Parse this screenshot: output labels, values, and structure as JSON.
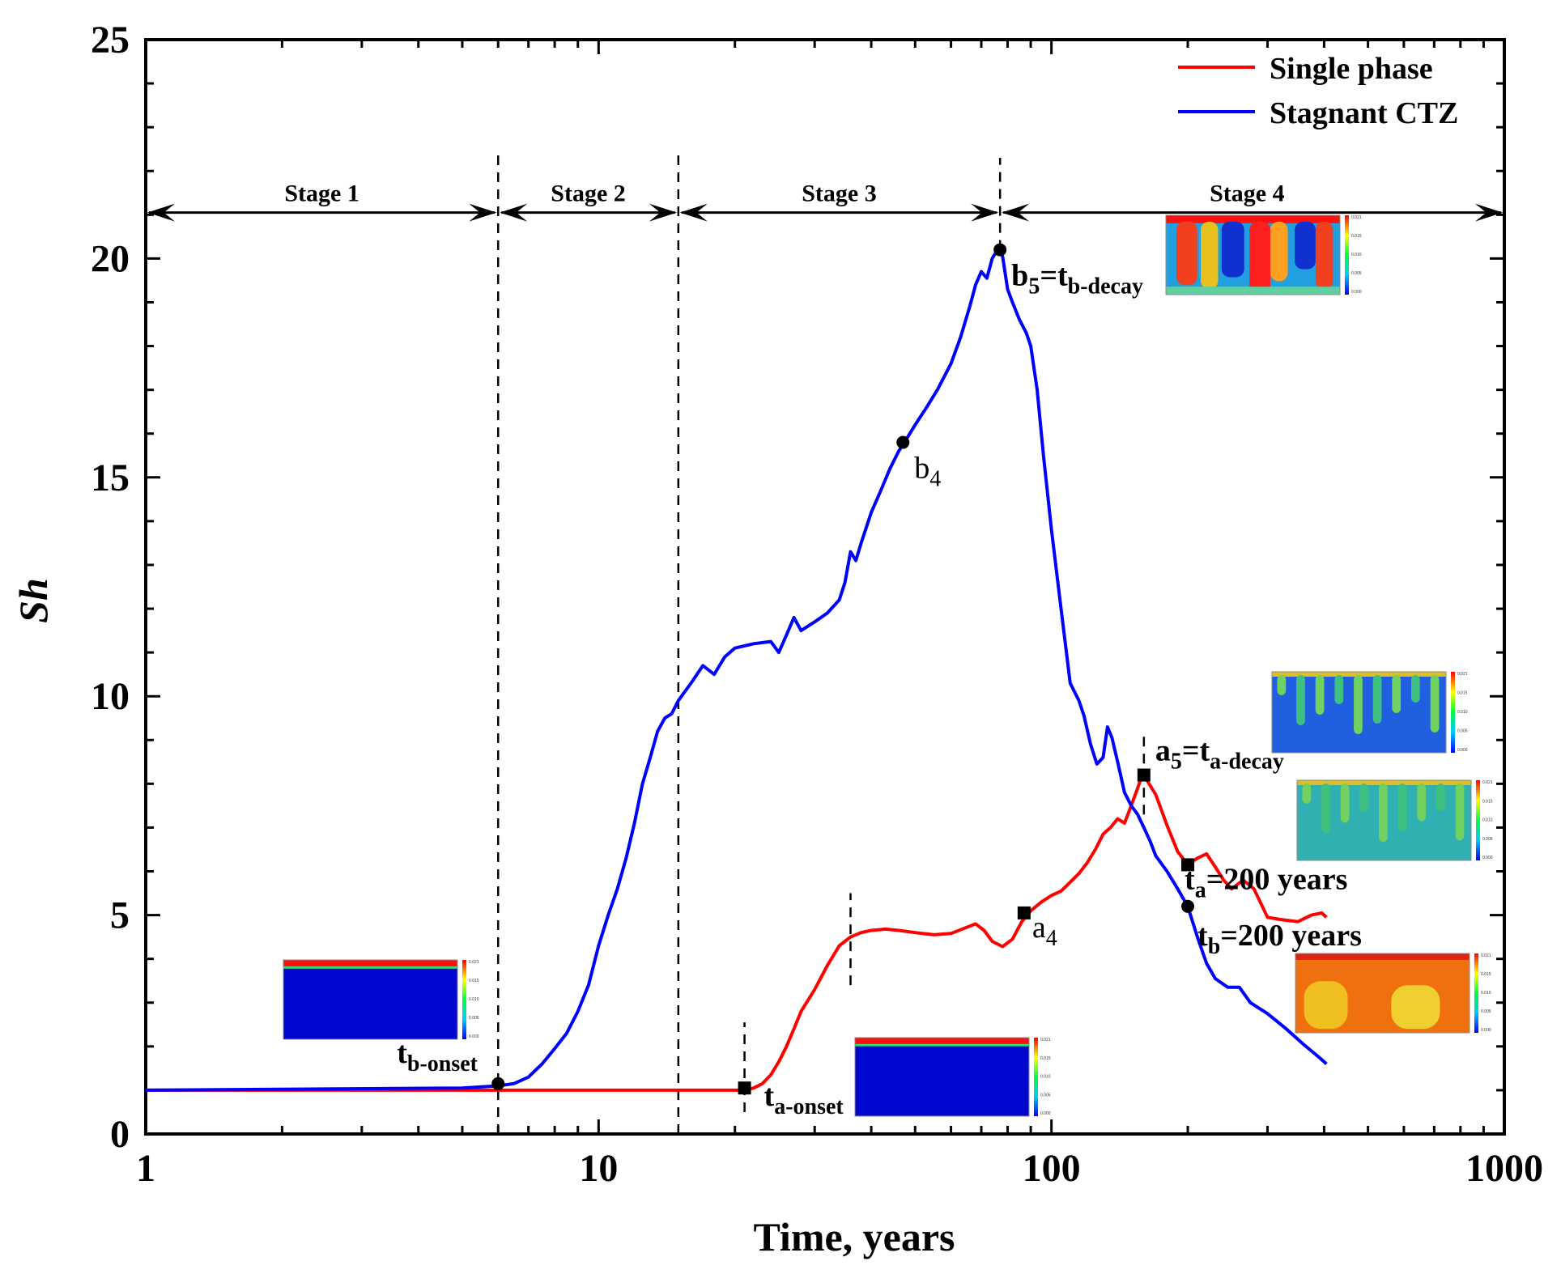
{
  "chart_data": {
    "type": "line",
    "xlabel": "Time, years",
    "ylabel": "Sh",
    "xscale": "log",
    "xlim": [
      1,
      1000
    ],
    "ylim": [
      0,
      25
    ],
    "x_ticks": [
      "1",
      "10",
      "100",
      "1000"
    ],
    "y_ticks": [
      "0",
      "5",
      "10",
      "15",
      "20",
      "25"
    ],
    "legend": {
      "position": "top-right",
      "entries": [
        {
          "label": "Single phase",
          "color": "#ff0000"
        },
        {
          "label": "Stagnant CTZ",
          "color": "#0000ff"
        }
      ]
    },
    "series": [
      {
        "name": "Single phase",
        "color": "#ff0000",
        "points": [
          [
            1,
            1.0
          ],
          [
            5,
            1.0
          ],
          [
            10,
            1.0
          ],
          [
            15,
            1.0
          ],
          [
            20,
            1.0
          ],
          [
            21,
            1.0
          ],
          [
            22,
            1.05
          ],
          [
            23,
            1.15
          ],
          [
            24,
            1.35
          ],
          [
            25,
            1.65
          ],
          [
            26,
            2.0
          ],
          [
            27,
            2.4
          ],
          [
            28,
            2.8
          ],
          [
            30,
            3.3
          ],
          [
            32,
            3.85
          ],
          [
            34,
            4.3
          ],
          [
            36,
            4.5
          ],
          [
            38,
            4.6
          ],
          [
            40,
            4.65
          ],
          [
            43,
            4.68
          ],
          [
            46,
            4.65
          ],
          [
            50,
            4.6
          ],
          [
            55,
            4.55
          ],
          [
            60,
            4.58
          ],
          [
            65,
            4.72
          ],
          [
            68,
            4.8
          ],
          [
            71,
            4.65
          ],
          [
            74,
            4.4
          ],
          [
            78,
            4.28
          ],
          [
            82,
            4.45
          ],
          [
            86,
            4.85
          ],
          [
            90,
            5.1
          ],
          [
            95,
            5.3
          ],
          [
            100,
            5.45
          ],
          [
            105,
            5.55
          ],
          [
            110,
            5.75
          ],
          [
            115,
            5.95
          ],
          [
            120,
            6.2
          ],
          [
            125,
            6.5
          ],
          [
            130,
            6.85
          ],
          [
            135,
            7.0
          ],
          [
            140,
            7.2
          ],
          [
            145,
            7.1
          ],
          [
            150,
            7.5
          ],
          [
            155,
            7.9
          ],
          [
            158,
            8.15
          ],
          [
            162,
            8.1
          ],
          [
            170,
            7.75
          ],
          [
            180,
            7.05
          ],
          [
            190,
            6.45
          ],
          [
            200,
            6.15
          ],
          [
            210,
            6.3
          ],
          [
            220,
            6.4
          ],
          [
            230,
            6.1
          ],
          [
            240,
            5.8
          ],
          [
            250,
            5.6
          ],
          [
            265,
            5.8
          ],
          [
            280,
            5.6
          ],
          [
            300,
            4.95
          ],
          [
            320,
            4.9
          ],
          [
            350,
            4.85
          ],
          [
            375,
            5.0
          ],
          [
            395,
            5.05
          ],
          [
            405,
            4.95
          ]
        ]
      },
      {
        "name": "Stagnant CTZ",
        "color": "#0000ff",
        "points": [
          [
            1,
            1.0
          ],
          [
            5,
            1.05
          ],
          [
            6,
            1.1
          ],
          [
            6.5,
            1.15
          ],
          [
            7,
            1.3
          ],
          [
            7.5,
            1.6
          ],
          [
            8,
            1.95
          ],
          [
            8.5,
            2.3
          ],
          [
            9,
            2.8
          ],
          [
            9.5,
            3.4
          ],
          [
            10,
            4.3
          ],
          [
            10.5,
            5.0
          ],
          [
            11,
            5.6
          ],
          [
            11.5,
            6.3
          ],
          [
            12,
            7.1
          ],
          [
            12.5,
            8.0
          ],
          [
            13,
            8.6
          ],
          [
            13.5,
            9.2
          ],
          [
            14,
            9.5
          ],
          [
            14.5,
            9.6
          ],
          [
            15,
            9.9
          ],
          [
            16,
            10.3
          ],
          [
            17,
            10.7
          ],
          [
            18,
            10.5
          ],
          [
            19,
            10.9
          ],
          [
            20,
            11.1
          ],
          [
            22,
            11.2
          ],
          [
            24,
            11.25
          ],
          [
            25,
            11.0
          ],
          [
            26,
            11.4
          ],
          [
            27,
            11.8
          ],
          [
            28,
            11.5
          ],
          [
            30,
            11.7
          ],
          [
            32,
            11.9
          ],
          [
            34,
            12.2
          ],
          [
            35,
            12.6
          ],
          [
            36,
            13.3
          ],
          [
            37,
            13.1
          ],
          [
            38,
            13.5
          ],
          [
            40,
            14.2
          ],
          [
            42,
            14.7
          ],
          [
            44,
            15.2
          ],
          [
            46,
            15.6
          ],
          [
            48,
            15.9
          ],
          [
            50,
            16.2
          ],
          [
            53,
            16.6
          ],
          [
            56,
            17.0
          ],
          [
            60,
            17.6
          ],
          [
            63,
            18.2
          ],
          [
            66,
            18.9
          ],
          [
            68,
            19.4
          ],
          [
            70,
            19.7
          ],
          [
            72,
            19.55
          ],
          [
            74,
            20.0
          ],
          [
            76,
            20.2
          ],
          [
            78,
            20.05
          ],
          [
            80,
            19.3
          ],
          [
            82,
            19.0
          ],
          [
            85,
            18.6
          ],
          [
            88,
            18.3
          ],
          [
            90,
            18.0
          ],
          [
            93,
            17.0
          ],
          [
            96,
            15.5
          ],
          [
            100,
            13.8
          ],
          [
            105,
            12.0
          ],
          [
            110,
            10.3
          ],
          [
            115,
            9.9
          ],
          [
            118,
            9.55
          ],
          [
            122,
            8.9
          ],
          [
            126,
            8.45
          ],
          [
            130,
            8.6
          ],
          [
            133,
            9.3
          ],
          [
            136,
            9.05
          ],
          [
            140,
            8.5
          ],
          [
            145,
            7.8
          ],
          [
            150,
            7.5
          ],
          [
            155,
            7.3
          ],
          [
            160,
            7.0
          ],
          [
            165,
            6.7
          ],
          [
            170,
            6.35
          ],
          [
            180,
            6.0
          ],
          [
            190,
            5.6
          ],
          [
            200,
            5.2
          ],
          [
            210,
            4.5
          ],
          [
            220,
            3.9
          ],
          [
            230,
            3.55
          ],
          [
            245,
            3.35
          ],
          [
            260,
            3.35
          ],
          [
            275,
            3.0
          ],
          [
            300,
            2.75
          ],
          [
            330,
            2.4
          ],
          [
            360,
            2.05
          ],
          [
            390,
            1.75
          ],
          [
            405,
            1.6
          ]
        ]
      }
    ],
    "markers": [
      {
        "series": "Stagnant CTZ",
        "shape": "circle",
        "x": 6,
        "y": 1.15,
        "label_main": "t",
        "label_sub": "b-onset"
      },
      {
        "series": "Stagnant CTZ",
        "shape": "circle",
        "x": 47,
        "y": 15.8,
        "label_main": "b",
        "label_sub": "4"
      },
      {
        "series": "Stagnant CTZ",
        "shape": "circle",
        "x": 77,
        "y": 20.2,
        "label_main": "b",
        "label_sub": "5",
        "label_rest": "=t",
        "label_sub2": "b-decay"
      },
      {
        "series": "Stagnant CTZ",
        "shape": "circle",
        "x": 200,
        "y": 5.2,
        "label_main": "t",
        "label_sub": "b",
        "label_rest": "=200 years"
      },
      {
        "series": "Single phase",
        "shape": "square",
        "x": 21,
        "y": 1.05,
        "label_main": "t",
        "label_sub": "a-onset"
      },
      {
        "series": "Single phase",
        "shape": "square",
        "x": 87,
        "y": 5.05,
        "label_main": "a",
        "label_sub": "4"
      },
      {
        "series": "Single phase",
        "shape": "square",
        "x": 160,
        "y": 8.2,
        "label_main": "a",
        "label_sub": "5",
        "label_rest": "=t",
        "label_sub2": "a-decay"
      },
      {
        "series": "Single phase",
        "shape": "square",
        "x": 200,
        "y": 6.15,
        "label_main": "t",
        "label_sub": "a",
        "label_rest": "=200 years"
      }
    ],
    "stages": [
      {
        "label": "Stage 1",
        "from": 1,
        "to": 6
      },
      {
        "label": "Stage 2",
        "from": 6,
        "to": 15
      },
      {
        "label": "Stage 3",
        "from": 15,
        "to": 77
      },
      {
        "label": "Stage 4",
        "from": 77,
        "to": 1000
      }
    ],
    "stage_arrow_y": 21.05,
    "dashed_lines": [
      {
        "x": 6,
        "y1": 0,
        "y2": 22.5
      },
      {
        "x": 15,
        "y1": 0,
        "y2": 22.5
      },
      {
        "x": 77,
        "y1": 20.2,
        "y2": 22.3
      },
      {
        "x": 21,
        "y1": 0.5,
        "y2": 2.55
      },
      {
        "x": 36,
        "y1": 3.4,
        "y2": 5.5
      },
      {
        "x": 160,
        "y1": 7.3,
        "y2": 9.2
      }
    ],
    "insets": [
      {
        "id": "inset-b-onset",
        "scale_labels": [
          "0.021",
          "0.015",
          "0.010",
          "0.005",
          "0.000"
        ]
      },
      {
        "id": "inset-a-onset",
        "scale_labels": [
          "0.021",
          "0.015",
          "0.010",
          "0.005",
          "0.000"
        ]
      },
      {
        "id": "inset-b-decay",
        "scale_labels": [
          "0.021",
          "0.015",
          "0.010",
          "0.005",
          "0.000"
        ]
      },
      {
        "id": "inset-a-decay",
        "scale_labels": [
          "0.021",
          "0.015",
          "0.010",
          "0.005",
          "0.000"
        ]
      },
      {
        "id": "inset-a-200",
        "scale_labels": [
          "0.021",
          "0.015",
          "0.010",
          "0.005",
          "0.000"
        ]
      },
      {
        "id": "inset-b-200",
        "scale_labels": [
          "0.021",
          "0.015",
          "0.010",
          "0.005",
          "0.000"
        ]
      }
    ]
  }
}
